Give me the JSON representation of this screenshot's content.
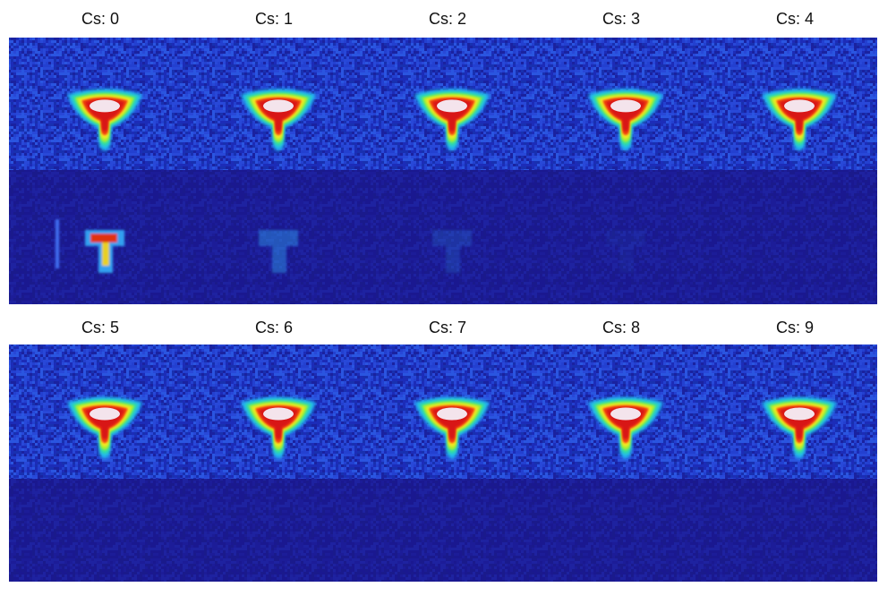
{
  "panels": [
    {
      "label": "Cs: 0"
    },
    {
      "label": "Cs: 1"
    },
    {
      "label": "Cs: 2"
    },
    {
      "label": "Cs: 3"
    },
    {
      "label": "Cs: 4"
    },
    {
      "label": "Cs: 5"
    },
    {
      "label": "Cs: 6"
    },
    {
      "label": "Cs: 7"
    },
    {
      "label": "Cs: 8"
    },
    {
      "label": "Cs: 9"
    }
  ]
}
